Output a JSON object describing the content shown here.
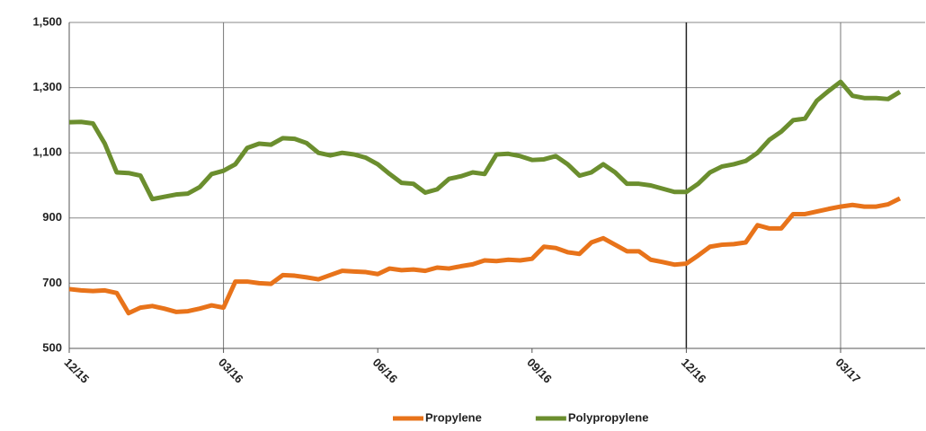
{
  "chart_data": {
    "type": "line",
    "categories": [
      "12/15",
      null,
      null,
      null,
      null,
      null,
      null,
      null,
      null,
      null,
      null,
      null,
      null,
      "03/16",
      null,
      null,
      null,
      null,
      null,
      null,
      null,
      null,
      null,
      null,
      null,
      null,
      "06/16",
      null,
      null,
      null,
      null,
      null,
      null,
      null,
      null,
      null,
      null,
      null,
      null,
      "09/16",
      null,
      null,
      null,
      null,
      null,
      null,
      null,
      null,
      null,
      null,
      null,
      null,
      "12/16",
      null,
      null,
      null,
      null,
      null,
      null,
      null,
      null,
      null,
      null,
      null,
      null,
      "03/17",
      null,
      null,
      null,
      null,
      null
    ],
    "series": [
      {
        "name": "Propylene",
        "color": "#e8731a",
        "values": [
          682,
          678,
          676,
          678,
          670,
          608,
          625,
          630,
          622,
          612,
          614,
          622,
          632,
          625,
          705,
          705,
          700,
          698,
          725,
          723,
          718,
          712,
          725,
          738,
          736,
          734,
          728,
          745,
          740,
          742,
          738,
          748,
          745,
          752,
          758,
          770,
          768,
          772,
          770,
          775,
          812,
          808,
          795,
          790,
          825,
          838,
          818,
          798,
          798,
          772,
          765,
          757,
          760,
          785,
          812,
          818,
          820,
          825,
          878,
          868,
          868,
          912,
          912,
          920,
          928,
          935,
          940,
          935,
          935,
          942,
          960
        ]
      },
      {
        "name": "Polypropylene",
        "color": "#6b8e2e",
        "values": [
          1194,
          1195,
          1190,
          1128,
          1040,
          1038,
          1030,
          958,
          965,
          972,
          975,
          995,
          1035,
          1045,
          1065,
          1115,
          1128,
          1125,
          1145,
          1143,
          1130,
          1100,
          1092,
          1100,
          1095,
          1085,
          1065,
          1035,
          1008,
          1005,
          978,
          988,
          1020,
          1028,
          1040,
          1035,
          1095,
          1097,
          1090,
          1078,
          1080,
          1090,
          1065,
          1030,
          1040,
          1065,
          1040,
          1005,
          1005,
          1000,
          990,
          980,
          980,
          1005,
          1040,
          1058,
          1065,
          1075,
          1100,
          1140,
          1165,
          1200,
          1205,
          1260,
          1290,
          1318,
          1275,
          1268,
          1268,
          1265,
          1287
        ]
      }
    ],
    "ylim": [
      500,
      1500
    ],
    "yticks": [
      {
        "value": 500,
        "label": "500"
      },
      {
        "value": 700,
        "label": "700"
      },
      {
        "value": 900,
        "label": "900"
      },
      {
        "value": 1100,
        "label": "1,100"
      },
      {
        "value": 1300,
        "label": "1,300"
      },
      {
        "value": 1500,
        "label": "1,500"
      }
    ],
    "grid": true,
    "x_grid_at": [
      "03/16",
      "12/16",
      "03/17"
    ],
    "legend": "bottom"
  }
}
